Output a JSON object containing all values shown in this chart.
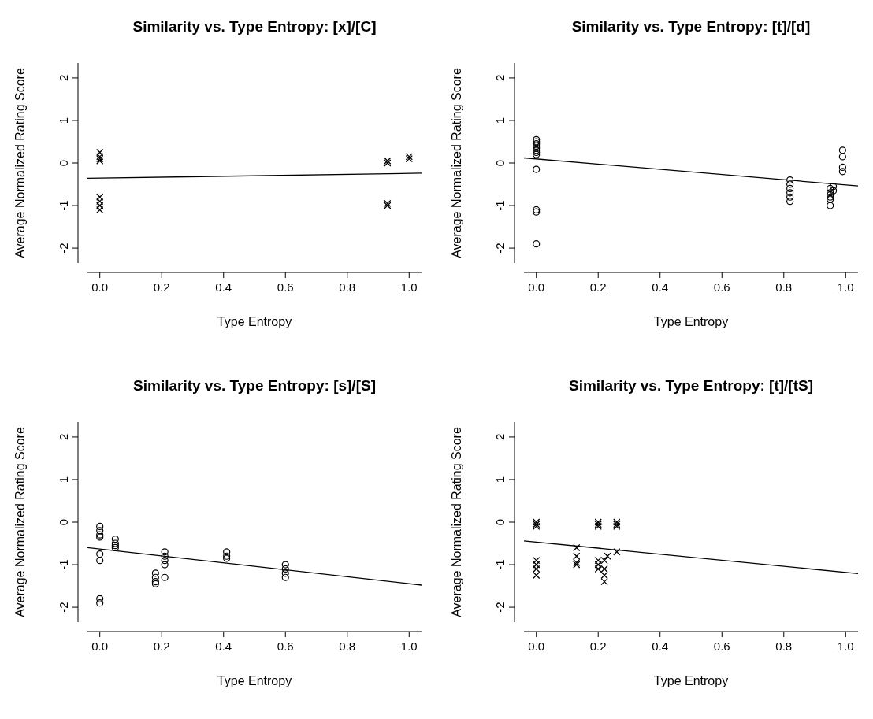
{
  "chart_data": [
    {
      "type": "scatter",
      "title": "Similarity vs. Type Entropy: [x]/[C]",
      "xlabel": "Type Entropy",
      "ylabel": "Average Normalized Rating Score",
      "xlim": [
        -0.04,
        1.04
      ],
      "ylim": [
        -2.35,
        2.35
      ],
      "xticks": [
        {
          "value": 0,
          "label": "0.0"
        },
        {
          "value": 0.2,
          "label": "0.2"
        },
        {
          "value": 0.4,
          "label": "0.4"
        },
        {
          "value": 0.6,
          "label": "0.6"
        },
        {
          "value": 0.8,
          "label": "0.8"
        },
        {
          "value": 1,
          "label": "1.0"
        }
      ],
      "yticks": [
        -2,
        -1,
        0,
        1,
        2
      ],
      "series": [
        {
          "marker": "cross",
          "color": "#000000",
          "x": [
            0,
            0,
            0,
            0,
            0,
            0,
            0,
            0,
            0.93,
            0.93,
            0.93,
            0.93,
            1,
            1
          ],
          "values": [
            0.25,
            0.15,
            0.1,
            0.05,
            -0.8,
            -0.9,
            -1.0,
            -1.1,
            0.05,
            0,
            -0.95,
            -1.0,
            0.15,
            0.1
          ]
        },
        {
          "type": "line",
          "color": "#000000",
          "x": [
            -0.04,
            1.04
          ],
          "values": [
            -0.36,
            -0.24
          ]
        }
      ]
    },
    {
      "type": "scatter",
      "title": "Similarity vs. Type Entropy: [t]/[d]",
      "xlabel": "Type Entropy",
      "ylabel": "Average Normalized Rating Score",
      "xlim": [
        -0.04,
        1.04
      ],
      "ylim": [
        -2.35,
        2.35
      ],
      "xticks": [
        {
          "value": 0,
          "label": "0.0"
        },
        {
          "value": 0.2,
          "label": "0.2"
        },
        {
          "value": 0.4,
          "label": "0.4"
        },
        {
          "value": 0.6,
          "label": "0.6"
        },
        {
          "value": 0.8,
          "label": "0.8"
        },
        {
          "value": 1,
          "label": "1.0"
        }
      ],
      "yticks": [
        -2,
        -1,
        0,
        1,
        2
      ],
      "series": [
        {
          "marker": "circle",
          "color": "#000000",
          "x": [
            0,
            0,
            0,
            0,
            0,
            0,
            0,
            0,
            0,
            0,
            0,
            0,
            0.82,
            0.82,
            0.82,
            0.82,
            0.82,
            0.82,
            0.95,
            0.95,
            0.95,
            0.95,
            0.95,
            0.95,
            0.96,
            0.96,
            0.99,
            0.99,
            0.99,
            0.99
          ],
          "values": [
            0.55,
            0.5,
            0.45,
            0.4,
            0.35,
            0.3,
            0.25,
            0.2,
            -0.15,
            -1.1,
            -1.15,
            -1.9,
            -0.4,
            -0.5,
            -0.6,
            -0.7,
            -0.8,
            -0.9,
            -0.6,
            -0.7,
            -0.75,
            -0.8,
            -0.85,
            -1.0,
            -0.55,
            -0.65,
            0.3,
            0.15,
            -0.1,
            -0.2
          ]
        },
        {
          "type": "line",
          "color": "#000000",
          "x": [
            -0.04,
            1.04
          ],
          "values": [
            0.12,
            -0.54
          ]
        }
      ]
    },
    {
      "type": "scatter",
      "title": "Similarity vs. Type Entropy: [s]/[S]",
      "xlabel": "Type Entropy",
      "ylabel": "Average Normalized Rating Score",
      "xlim": [
        -0.04,
        1.04
      ],
      "ylim": [
        -2.35,
        2.35
      ],
      "xticks": [
        {
          "value": 0,
          "label": "0.0"
        },
        {
          "value": 0.2,
          "label": "0.2"
        },
        {
          "value": 0.4,
          "label": "0.4"
        },
        {
          "value": 0.6,
          "label": "0.6"
        },
        {
          "value": 0.8,
          "label": "0.8"
        },
        {
          "value": 1,
          "label": "1.0"
        }
      ],
      "yticks": [
        -2,
        -1,
        0,
        1,
        2
      ],
      "series": [
        {
          "marker": "circle",
          "color": "#000000",
          "x": [
            0,
            0,
            0,
            0,
            0,
            0,
            0,
            0,
            0.05,
            0.05,
            0.05,
            0.05,
            0.18,
            0.18,
            0.18,
            0.18,
            0.21,
            0.21,
            0.21,
            0.21,
            0.21,
            0.41,
            0.41,
            0.41,
            0.6,
            0.6,
            0.6,
            0.6
          ],
          "values": [
            -0.1,
            -0.2,
            -0.3,
            -0.35,
            -0.75,
            -0.9,
            -1.8,
            -1.9,
            -0.4,
            -0.5,
            -0.55,
            -0.6,
            -1.2,
            -1.3,
            -1.4,
            -1.45,
            -0.7,
            -0.8,
            -0.9,
            -1.0,
            -1.3,
            -0.7,
            -0.8,
            -0.85,
            -1.0,
            -1.1,
            -1.2,
            -1.3
          ]
        },
        {
          "type": "line",
          "color": "#000000",
          "x": [
            -0.04,
            1.04
          ],
          "values": [
            -0.6,
            -1.48
          ]
        }
      ]
    },
    {
      "type": "scatter",
      "title": "Similarity vs. Type Entropy: [t]/[tS]",
      "xlabel": "Type Entropy",
      "ylabel": "Average Normalized Rating Score",
      "xlim": [
        -0.04,
        1.04
      ],
      "ylim": [
        -2.35,
        2.35
      ],
      "xticks": [
        {
          "value": 0,
          "label": "0.0"
        },
        {
          "value": 0.2,
          "label": "0.2"
        },
        {
          "value": 0.4,
          "label": "0.4"
        },
        {
          "value": 0.6,
          "label": "0.6"
        },
        {
          "value": 0.8,
          "label": "0.8"
        },
        {
          "value": 1,
          "label": "1.0"
        }
      ],
      "yticks": [
        -2,
        -1,
        0,
        1,
        2
      ],
      "series": [
        {
          "marker": "cross",
          "color": "#000000",
          "x": [
            0,
            0,
            0,
            0,
            0,
            0,
            0,
            0.13,
            0.13,
            0.13,
            0.13,
            0.2,
            0.2,
            0.2,
            0.2,
            0.2,
            0.2,
            0.22,
            0.22,
            0.22,
            0.22,
            0.23,
            0.26,
            0.26,
            0.26,
            0.26
          ],
          "values": [
            -0.05,
            -0.1,
            0,
            -0.9,
            -1.0,
            -1.1,
            -1.25,
            -0.6,
            -0.8,
            -0.95,
            -1.0,
            0,
            -0.05,
            -0.1,
            -0.9,
            -1.0,
            -1.1,
            -0.9,
            -1.1,
            -1.25,
            -1.4,
            -0.8,
            0,
            -0.05,
            -0.1,
            -0.7
          ]
        },
        {
          "type": "line",
          "color": "#000000",
          "x": [
            -0.04,
            1.04
          ],
          "values": [
            -0.44,
            -1.21
          ]
        }
      ]
    }
  ]
}
